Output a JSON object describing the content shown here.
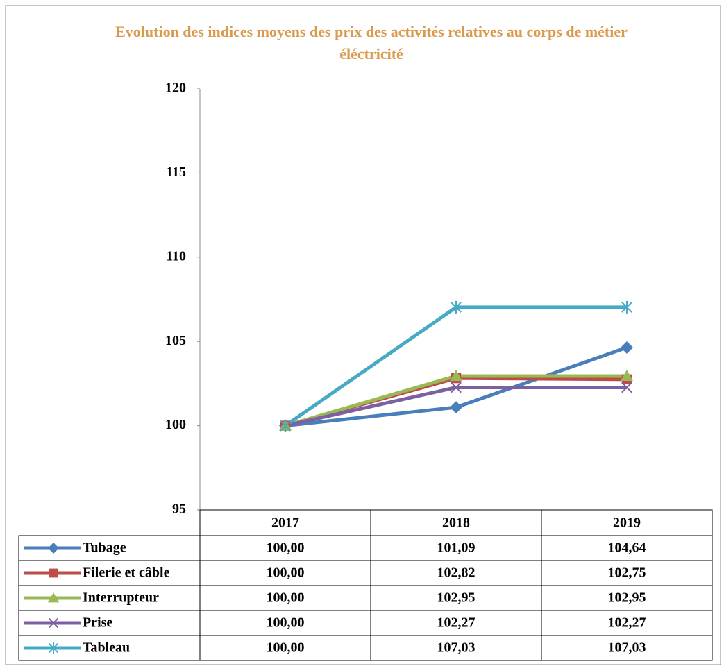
{
  "chart_data": {
    "type": "line",
    "title": "Evolution des indices moyens des prix des activités relatives au corps de métier éléctricité",
    "categories": [
      "2017",
      "2018",
      "2019"
    ],
    "ylim": [
      95,
      120
    ],
    "yticks": [
      95,
      100,
      105,
      110,
      115,
      120
    ],
    "series": [
      {
        "name": "Tubage",
        "color": "#4a7ebb",
        "marker": "diamond",
        "values": [
          100.0,
          101.09,
          104.64
        ],
        "value_labels": [
          "100,00",
          "101,09",
          "104,64"
        ]
      },
      {
        "name": "Filerie et câble",
        "color": "#be4b48",
        "marker": "square",
        "values": [
          100.0,
          102.82,
          102.75
        ],
        "value_labels": [
          "100,00",
          "102,82",
          "102,75"
        ]
      },
      {
        "name": "Interrupteur",
        "color": "#98b954",
        "marker": "triangle",
        "values": [
          100.0,
          102.95,
          102.95
        ],
        "value_labels": [
          "100,00",
          "102,95",
          "102,95"
        ]
      },
      {
        "name": "Prise",
        "color": "#7d60a0",
        "marker": "x",
        "values": [
          100.0,
          102.27,
          102.27
        ],
        "value_labels": [
          "100,00",
          "102,27",
          "102,27"
        ]
      },
      {
        "name": "Tableau",
        "color": "#46aac5",
        "marker": "star",
        "values": [
          100.0,
          107.03,
          107.03
        ],
        "value_labels": [
          "100,00",
          "107,03",
          "107,03"
        ]
      }
    ]
  }
}
